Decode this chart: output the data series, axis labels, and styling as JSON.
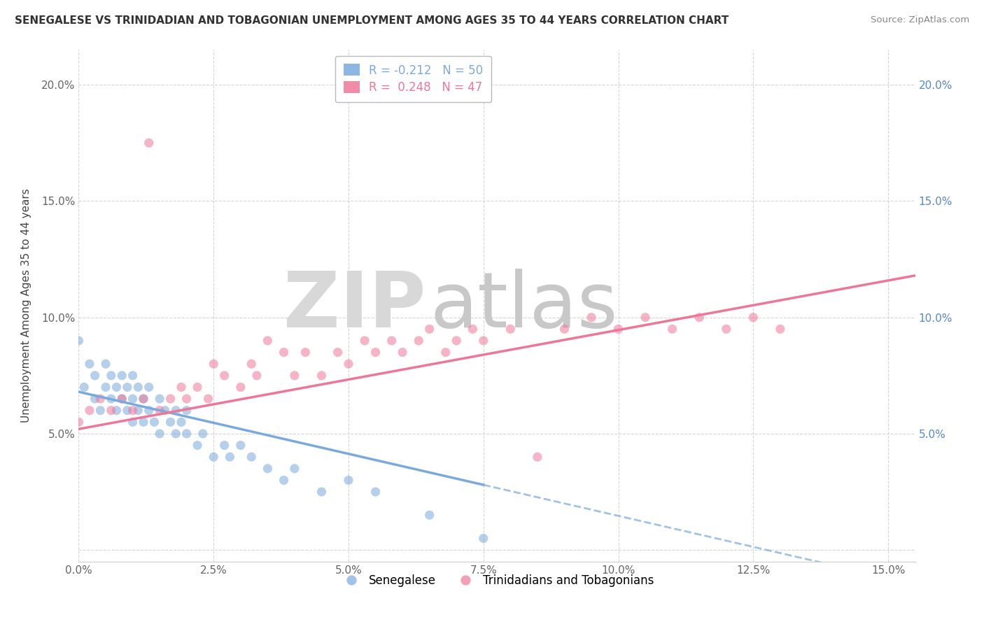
{
  "title": "SENEGALESE VS TRINIDADIAN AND TOBAGONIAN UNEMPLOYMENT AMONG AGES 35 TO 44 YEARS CORRELATION CHART",
  "source": "Source: ZipAtlas.com",
  "ylabel": "Unemployment Among Ages 35 to 44 years",
  "xlim": [
    0.0,
    0.155
  ],
  "ylim": [
    -0.005,
    0.215
  ],
  "xticks": [
    0.0,
    0.025,
    0.05,
    0.075,
    0.1,
    0.125,
    0.15
  ],
  "xticklabels": [
    "0.0%",
    "2.5%",
    "5.0%",
    "7.5%",
    "10.0%",
    "12.5%",
    "15.0%"
  ],
  "yticks": [
    0.0,
    0.05,
    0.1,
    0.15,
    0.2
  ],
  "yticklabels": [
    "",
    "5.0%",
    "10.0%",
    "15.0%",
    "20.0%"
  ],
  "legend_labels": [
    "Senegalese",
    "Trinidadians and Tobagonians"
  ],
  "blue_color": "#7aaadd",
  "pink_color": "#ee7799",
  "right_axis_color": "#5588cc",
  "watermark_zip_color": "#d8d8d8",
  "watermark_atlas_color": "#c8c8c8",
  "background_color": "#ffffff",
  "grid_color": "#cccccc",
  "blue_scatter_x": [
    0.0,
    0.001,
    0.002,
    0.003,
    0.003,
    0.004,
    0.005,
    0.005,
    0.006,
    0.006,
    0.007,
    0.007,
    0.008,
    0.008,
    0.009,
    0.009,
    0.01,
    0.01,
    0.01,
    0.011,
    0.011,
    0.012,
    0.012,
    0.013,
    0.013,
    0.014,
    0.015,
    0.015,
    0.016,
    0.017,
    0.018,
    0.018,
    0.019,
    0.02,
    0.02,
    0.022,
    0.023,
    0.025,
    0.027,
    0.028,
    0.03,
    0.032,
    0.035,
    0.038,
    0.04,
    0.045,
    0.05,
    0.055,
    0.065,
    0.075
  ],
  "blue_scatter_y": [
    0.09,
    0.07,
    0.08,
    0.065,
    0.075,
    0.06,
    0.07,
    0.08,
    0.065,
    0.075,
    0.06,
    0.07,
    0.065,
    0.075,
    0.06,
    0.07,
    0.055,
    0.065,
    0.075,
    0.06,
    0.07,
    0.055,
    0.065,
    0.06,
    0.07,
    0.055,
    0.065,
    0.05,
    0.06,
    0.055,
    0.05,
    0.06,
    0.055,
    0.05,
    0.06,
    0.045,
    0.05,
    0.04,
    0.045,
    0.04,
    0.045,
    0.04,
    0.035,
    0.03,
    0.035,
    0.025,
    0.03,
    0.025,
    0.015,
    0.005
  ],
  "pink_scatter_x": [
    0.0,
    0.002,
    0.004,
    0.006,
    0.008,
    0.01,
    0.012,
    0.013,
    0.015,
    0.017,
    0.019,
    0.02,
    0.022,
    0.024,
    0.025,
    0.027,
    0.03,
    0.032,
    0.033,
    0.035,
    0.038,
    0.04,
    0.042,
    0.045,
    0.048,
    0.05,
    0.053,
    0.055,
    0.058,
    0.06,
    0.063,
    0.065,
    0.068,
    0.07,
    0.073,
    0.075,
    0.08,
    0.085,
    0.09,
    0.095,
    0.1,
    0.105,
    0.11,
    0.115,
    0.12,
    0.125,
    0.13
  ],
  "pink_scatter_y": [
    0.055,
    0.06,
    0.065,
    0.06,
    0.065,
    0.06,
    0.065,
    0.175,
    0.06,
    0.065,
    0.07,
    0.065,
    0.07,
    0.065,
    0.08,
    0.075,
    0.07,
    0.08,
    0.075,
    0.09,
    0.085,
    0.075,
    0.085,
    0.075,
    0.085,
    0.08,
    0.09,
    0.085,
    0.09,
    0.085,
    0.09,
    0.095,
    0.085,
    0.09,
    0.095,
    0.09,
    0.095,
    0.04,
    0.095,
    0.1,
    0.095,
    0.1,
    0.095,
    0.1,
    0.095,
    0.1,
    0.095
  ],
  "blue_line_x0": 0.0,
  "blue_line_y0": 0.068,
  "blue_line_x1": 0.075,
  "blue_line_y1": 0.028,
  "blue_line_dash_x0": 0.075,
  "blue_line_dash_x1": 0.155,
  "pink_line_x0": 0.0,
  "pink_line_y0": 0.052,
  "pink_line_x1": 0.155,
  "pink_line_y1": 0.118
}
